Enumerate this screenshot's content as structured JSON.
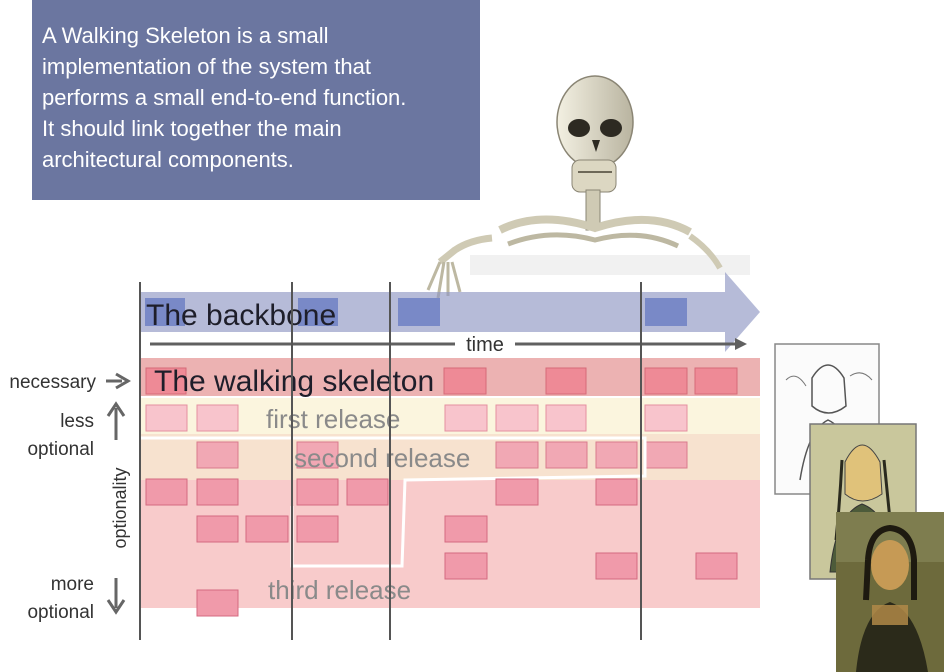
{
  "callout": {
    "lines": [
      "A Walking Skeleton is a small",
      "implementation of the system that",
      "performs a small end-to-end function.",
      "It should link together the main",
      "architectural components."
    ]
  },
  "diagram": {
    "backbone_label": "The backbone",
    "time_label": "time",
    "walking_skeleton_label": "The walking skeleton",
    "first_release_label": "first release",
    "second_release_label": "second release",
    "third_release_label": "third release",
    "axis": {
      "necessary": "necessary",
      "less": "less",
      "optional_top": "optional",
      "optionality": "optionality",
      "more": "more",
      "optional_bottom": "optional"
    }
  },
  "images": {
    "skeleton": "skeleton-illustration",
    "mona_lisa_sketch": "mona-lisa-sketch",
    "mona_lisa_color": "mona-lisa-flat-color",
    "mona_lisa_painting": "mona-lisa-painting"
  }
}
